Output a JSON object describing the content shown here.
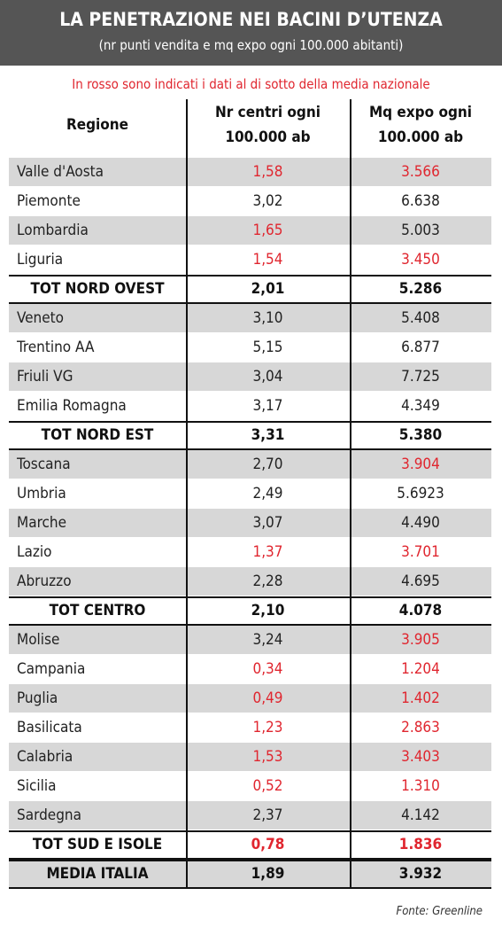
{
  "header": {
    "title": "LA PENETRAZIONE NEI BACINI D’UTENZA",
    "subtitle": "(nr punti vendita e mq expo ogni 100.000 abitanti)"
  },
  "note": "In rosso sono indicati i dati al di sotto della media nazionale",
  "table": {
    "columns": [
      [
        "Regione"
      ],
      [
        "Nr centri ogni",
        "100.000 ab"
      ],
      [
        "Mq expo ogni",
        "100.000 ab"
      ]
    ],
    "highlight_color": "#e0262f",
    "groups": [
      {
        "rows": [
          [
            "Valle d'Aosta",
            "1,58",
            "3.566"
          ],
          [
            "Piemonte",
            "3,02",
            "6.638"
          ],
          [
            "Lombardia",
            "1,65",
            "5.003"
          ],
          [
            "Liguria",
            "1,54",
            "3.450"
          ]
        ],
        "highlighted": [
          [
            false,
            true,
            true
          ],
          [
            false,
            false,
            false
          ],
          [
            false,
            true,
            false
          ],
          [
            false,
            true,
            true
          ]
        ],
        "total": [
          "TOT NORD OVEST",
          "2,01",
          "5.286"
        ],
        "total_highlighted": [
          false,
          false,
          false
        ]
      },
      {
        "rows": [
          [
            "Veneto",
            "3,10",
            "5.408"
          ],
          [
            "Trentino AA",
            "5,15",
            "6.877"
          ],
          [
            "Friuli VG",
            "3,04",
            "7.725"
          ],
          [
            "Emilia Romagna",
            "3,17",
            "4.349"
          ]
        ],
        "highlighted": [
          [
            false,
            false,
            false
          ],
          [
            false,
            false,
            false
          ],
          [
            false,
            false,
            false
          ],
          [
            false,
            false,
            false
          ]
        ],
        "total": [
          "TOT NORD EST",
          "3,31",
          "5.380"
        ],
        "total_highlighted": [
          false,
          false,
          false
        ]
      },
      {
        "rows": [
          [
            "Toscana",
            "2,70",
            "3.904"
          ],
          [
            "Umbria",
            "2,49",
            "5.6923"
          ],
          [
            "Marche",
            "3,07",
            "4.490"
          ],
          [
            "Lazio",
            "1,37",
            "3.701"
          ],
          [
            "Abruzzo",
            "2,28",
            "4.695"
          ]
        ],
        "highlighted": [
          [
            false,
            false,
            true
          ],
          [
            false,
            false,
            false
          ],
          [
            false,
            false,
            false
          ],
          [
            false,
            true,
            true
          ],
          [
            false,
            false,
            false
          ]
        ],
        "total": [
          "TOT CENTRO",
          "2,10",
          "4.078"
        ],
        "total_highlighted": [
          false,
          false,
          false
        ]
      },
      {
        "rows": [
          [
            "Molise",
            "3,24",
            "3.905"
          ],
          [
            "Campania",
            "0,34",
            "1.204"
          ],
          [
            "Puglia",
            "0,49",
            "1.402"
          ],
          [
            "Basilicata",
            "1,23",
            "2.863"
          ],
          [
            "Calabria",
            "1,53",
            "3.403"
          ],
          [
            "Sicilia",
            "0,52",
            "1.310"
          ],
          [
            "Sardegna",
            "2,37",
            "4.142"
          ]
        ],
        "highlighted": [
          [
            false,
            false,
            true
          ],
          [
            false,
            true,
            true
          ],
          [
            false,
            true,
            true
          ],
          [
            false,
            true,
            true
          ],
          [
            false,
            true,
            true
          ],
          [
            false,
            true,
            true
          ],
          [
            false,
            false,
            false
          ]
        ],
        "total": [
          "TOT SUD E ISOLE",
          "0,78",
          "1.836"
        ],
        "total_highlighted": [
          false,
          true,
          true
        ]
      }
    ],
    "average": [
      "MEDIA ITALIA",
      "1,89",
      "3.932"
    ]
  },
  "source": "Fonte: Greenline"
}
